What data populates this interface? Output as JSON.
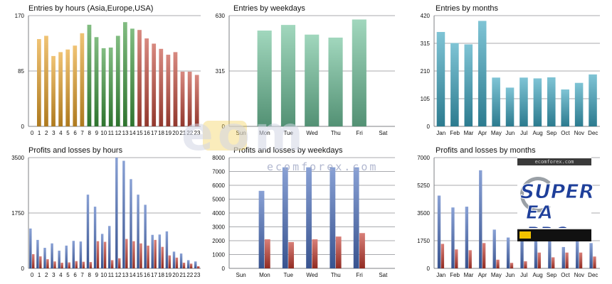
{
  "colors": {
    "gridline": "#a8aaae",
    "axis": "#7f8286",
    "title_text": "#111111",
    "tick_text": "#111111"
  },
  "watermark": {
    "brand": "eom",
    "url": "ecomforex.com"
  },
  "ad": {
    "site": "ecomforex.com",
    "line1": "SUPER",
    "line2": "EA PRO"
  },
  "chart_data": [
    {
      "type": "bar",
      "title": "Entries by hours (Asia,Europe,USA)",
      "categories": [
        "0",
        "1",
        "2",
        "3",
        "4",
        "5",
        "6",
        "7",
        "8",
        "9",
        "10",
        "11",
        "12",
        "13",
        "14",
        "15",
        "16",
        "17",
        "18",
        "19",
        "20",
        "21",
        "22",
        "23"
      ],
      "series": [
        {
          "values": [
            0,
            134,
            139,
            108,
            114,
            118,
            124,
            143,
            156,
            137,
            120,
            121,
            139,
            160,
            150,
            148,
            135,
            127,
            119,
            110,
            114,
            84,
            84,
            79
          ]
        }
      ],
      "color_groups": [
        {
          "range": [
            0,
            7
          ],
          "color": "#e8a229"
        },
        {
          "range": [
            8,
            14
          ],
          "color": "#3f9a3f"
        },
        {
          "range": [
            15,
            23
          ],
          "color": "#c34a3c"
        }
      ],
      "ylim": [
        0,
        170
      ],
      "yticks": [
        "0",
        "85",
        "170"
      ]
    },
    {
      "type": "bar",
      "title": "Entries by weekdays",
      "categories": [
        "Sun",
        "Mon",
        "Tue",
        "Wed",
        "Thu",
        "Fri",
        "Sat"
      ],
      "series": [
        {
          "values": [
            0,
            545,
            577,
            522,
            505,
            608,
            0
          ]
        }
      ],
      "color": "#6fc19a",
      "ylim": [
        0,
        630
      ],
      "yticks": [
        "0",
        "315",
        "630"
      ]
    },
    {
      "type": "bar",
      "title": "Entries by months",
      "categories": [
        "Jan",
        "Feb",
        "Mar",
        "Apr",
        "May",
        "Jun",
        "Jul",
        "Aug",
        "Sep",
        "Oct",
        "Nov",
        "Dec"
      ],
      "series": [
        {
          "values": [
            358,
            316,
            311,
            400,
            185,
            147,
            185,
            182,
            186,
            140,
            165,
            197
          ]
        }
      ],
      "color": "#3aa4bf",
      "ylim": [
        0,
        420
      ],
      "yticks": [
        "0",
        "105",
        "210",
        "315",
        "420"
      ]
    },
    {
      "type": "bar",
      "title": "Profits and losses by hours",
      "categories": [
        "0",
        "1",
        "2",
        "3",
        "4",
        "5",
        "6",
        "7",
        "8",
        "9",
        "10",
        "11",
        "12",
        "13",
        "14",
        "15",
        "16",
        "17",
        "18",
        "19",
        "20",
        "21",
        "22",
        "23"
      ],
      "series": [
        {
          "values": [
            1260,
            900,
            650,
            790,
            560,
            720,
            870,
            850,
            2330,
            1950,
            1090,
            1340,
            3500,
            3400,
            2820,
            2330,
            2010,
            1060,
            1070,
            1170,
            530,
            470,
            260,
            220
          ]
        },
        {
          "values": [
            450,
            380,
            290,
            220,
            180,
            190,
            230,
            210,
            200,
            860,
            840,
            260,
            320,
            930,
            860,
            790,
            720,
            900,
            680,
            410,
            340,
            180,
            150,
            70
          ]
        }
      ],
      "series_colors": [
        "#4a6fbf",
        "#c33a2f"
      ],
      "ylim": [
        0,
        3500
      ],
      "yticks": [
        "0",
        "1750",
        "3500"
      ]
    },
    {
      "type": "bar",
      "title": "Profits and losses by weekdays",
      "categories": [
        "Sun",
        "Mon",
        "Tue",
        "Wed",
        "Thu",
        "Fri",
        "Sat"
      ],
      "series": [
        {
          "values": [
            0,
            5600,
            7300,
            7300,
            7300,
            7300,
            0
          ]
        },
        {
          "values": [
            0,
            2100,
            1900,
            2100,
            2300,
            2550,
            0
          ]
        }
      ],
      "series_colors": [
        "#4a6fbf",
        "#c33a2f"
      ],
      "ylim": [
        0,
        8000
      ],
      "yticks": [
        "0",
        "1000",
        "2000",
        "3000",
        "4000",
        "5000",
        "6000",
        "7000",
        "8000"
      ]
    },
    {
      "type": "bar",
      "title": "Profits and losses by months",
      "categories": [
        "Jan",
        "Feb",
        "Mar",
        "Apr",
        "May",
        "Jun",
        "Jul",
        "Aug",
        "Sep",
        "Oct",
        "Nov",
        "Dec"
      ],
      "series": [
        {
          "values": [
            4600,
            3850,
            3900,
            6200,
            2450,
            1950,
            2400,
            2000,
            1950,
            1350,
            1750,
            1600
          ]
        },
        {
          "values": [
            1550,
            1200,
            1150,
            1600,
            550,
            350,
            450,
            1000,
            700,
            1000,
            1000,
            750
          ]
        }
      ],
      "series_colors": [
        "#4a6fbf",
        "#c33a2f"
      ],
      "ylim": [
        0,
        7000
      ],
      "yticks": [
        "0",
        "1750",
        "3500",
        "5250",
        "7000"
      ]
    }
  ]
}
